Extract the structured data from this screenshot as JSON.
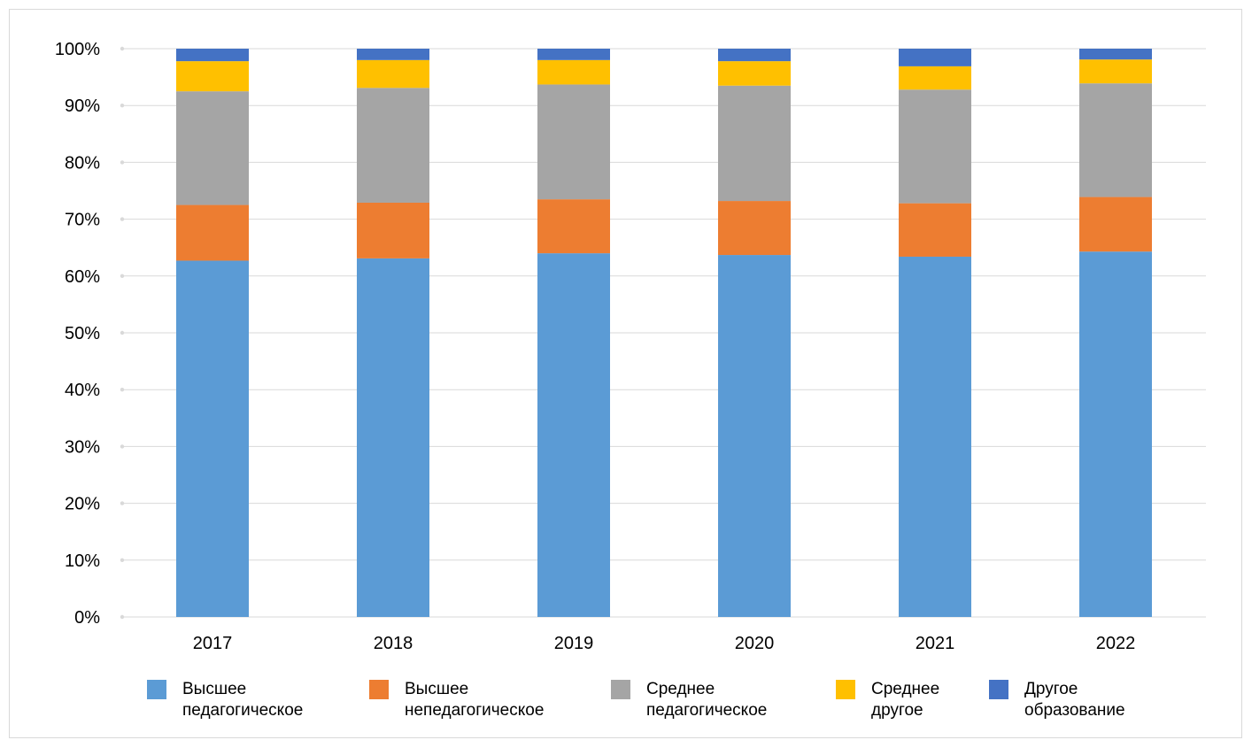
{
  "chart_data": {
    "type": "bar",
    "stacked": true,
    "percent": true,
    "categories": [
      "2017",
      "2018",
      "2019",
      "2020",
      "2021",
      "2022"
    ],
    "series": [
      {
        "name": "Высшее педагогическое",
        "legend_lines": [
          "Высшее",
          "педагогическое"
        ],
        "color": "#5b9bd5",
        "values": [
          62.7,
          63.1,
          64.0,
          63.7,
          63.4,
          64.3
        ]
      },
      {
        "name": "Высшее непедагогическое",
        "legend_lines": [
          "Высшее",
          "непедагогическое"
        ],
        "color": "#ed7d31",
        "values": [
          9.8,
          9.8,
          9.5,
          9.5,
          9.4,
          9.6
        ]
      },
      {
        "name": "Среднее педагогическое",
        "legend_lines": [
          "Среднее",
          "педагогическое"
        ],
        "color": "#a5a5a5",
        "values": [
          20.0,
          20.2,
          20.2,
          20.3,
          20.0,
          20.0
        ]
      },
      {
        "name": "Среднее другое",
        "legend_lines": [
          "Среднее",
          "другое"
        ],
        "color": "#ffc000",
        "values": [
          5.3,
          4.9,
          4.3,
          4.3,
          4.1,
          4.2
        ]
      },
      {
        "name": "Другое образование",
        "legend_lines": [
          "Другое",
          "образование"
        ],
        "color": "#4472c4",
        "values": [
          2.2,
          2.0,
          2.0,
          2.2,
          3.1,
          1.9
        ]
      }
    ],
    "yticks": [
      "0%",
      "10%",
      "20%",
      "30%",
      "40%",
      "50%",
      "60%",
      "70%",
      "80%",
      "90%",
      "100%"
    ],
    "ylim": [
      0,
      100
    ],
    "grid": true,
    "legend_position": "bottom",
    "gridline_color": "#d9d9d9"
  }
}
